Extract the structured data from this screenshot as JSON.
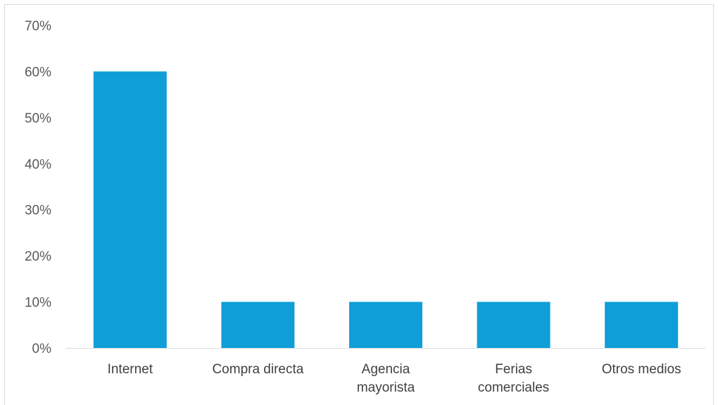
{
  "chart_data": {
    "type": "bar",
    "categories": [
      [
        "Internet"
      ],
      [
        "Compra directa"
      ],
      [
        "Agencia",
        "mayorista"
      ],
      [
        "Ferias",
        "comerciales"
      ],
      [
        "Otros medios"
      ]
    ],
    "values": [
      0.6,
      0.1,
      0.1,
      0.1,
      0.1
    ],
    "ylim": [
      0,
      0.7
    ],
    "yticks": [
      "0%",
      "10%",
      "20%",
      "30%",
      "40%",
      "50%",
      "60%",
      "70%"
    ],
    "bar_color": "#109ed8",
    "axis_color": "#d9d9d9",
    "grid": false,
    "title": "",
    "xlabel": "",
    "ylabel": ""
  }
}
